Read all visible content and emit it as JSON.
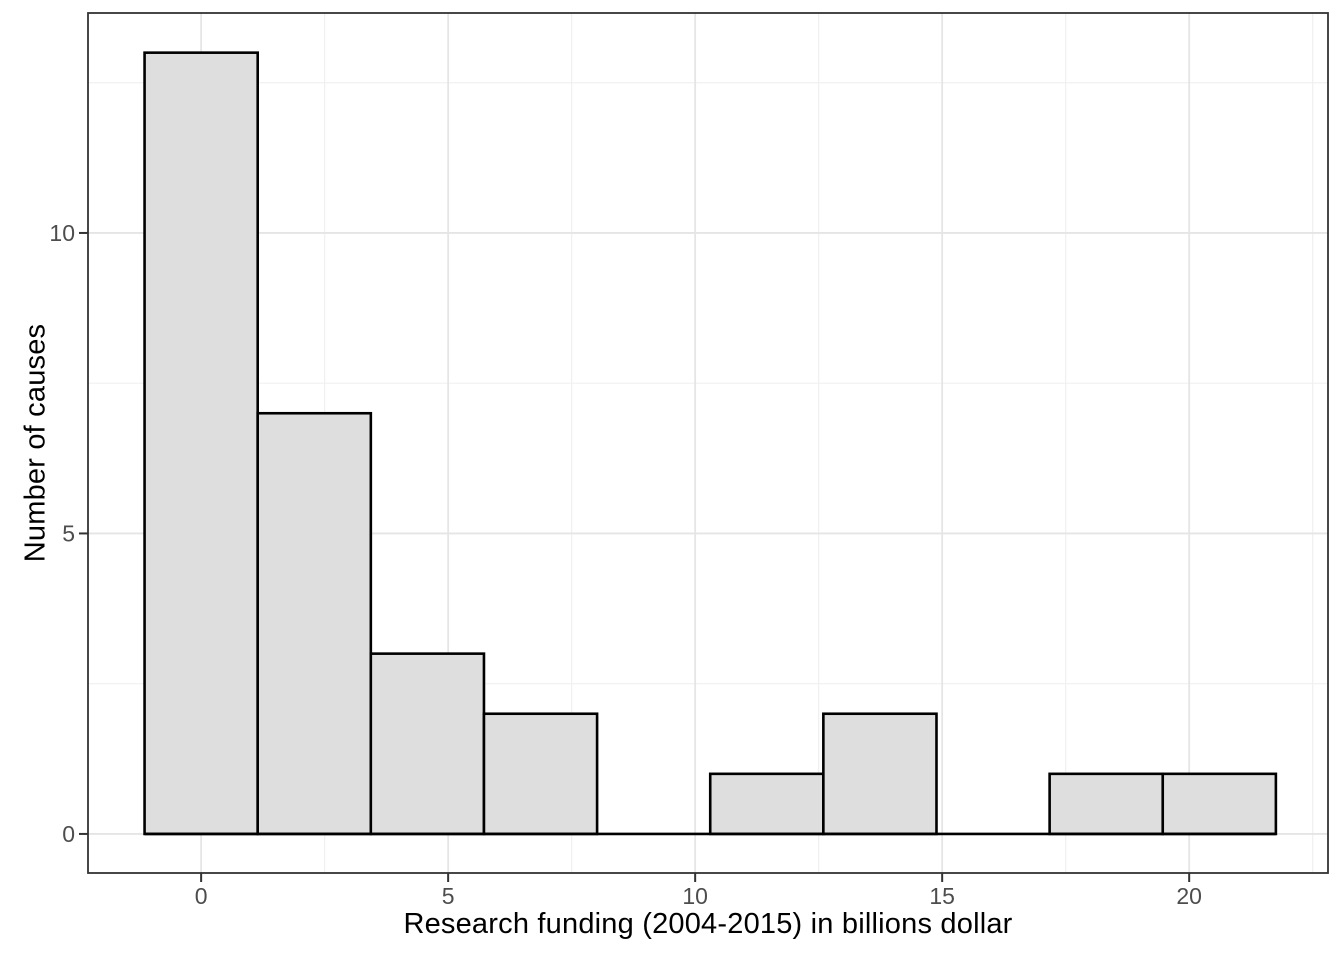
{
  "chart_data": {
    "type": "bar",
    "subtype": "histogram",
    "title": "",
    "xlabel": "Research funding (2004-2015) in billions dollar",
    "ylabel": "Number of causes",
    "bin_edges": [
      -1.145,
      1.145,
      3.435,
      5.725,
      8.015,
      10.305,
      12.595,
      14.885,
      17.175,
      19.465,
      21.755
    ],
    "bin_width": 2.29,
    "counts": [
      13,
      7,
      3,
      2,
      0,
      1,
      2,
      0,
      1,
      1
    ],
    "x_ticks": [
      0,
      5,
      10,
      15,
      20
    ],
    "x_tick_labels": [
      "0",
      "5",
      "10",
      "15",
      "20"
    ],
    "x_minor_ticks": [
      2.5,
      7.5,
      12.5,
      17.5,
      22.5
    ],
    "y_ticks": [
      0,
      5,
      10
    ],
    "y_tick_labels": [
      "0",
      "5",
      "10"
    ],
    "y_minor_ticks": [
      2.5,
      7.5,
      12.5
    ],
    "xlim": [
      -2.29,
      22.81
    ],
    "ylim": [
      -0.65,
      13.66
    ],
    "grid": "major-and-minor",
    "legend": "none",
    "colors": {
      "background": "#FFFFFF",
      "bar_fill": "#DEDEDE",
      "bar_stroke": "#000000",
      "grid_major": "#E5E5E5",
      "grid_minor": "#F0F0F0",
      "panel_border": "#333333",
      "tick": "#333333",
      "tick_label": "#4D4D4D",
      "axis_title": "#000000"
    }
  }
}
